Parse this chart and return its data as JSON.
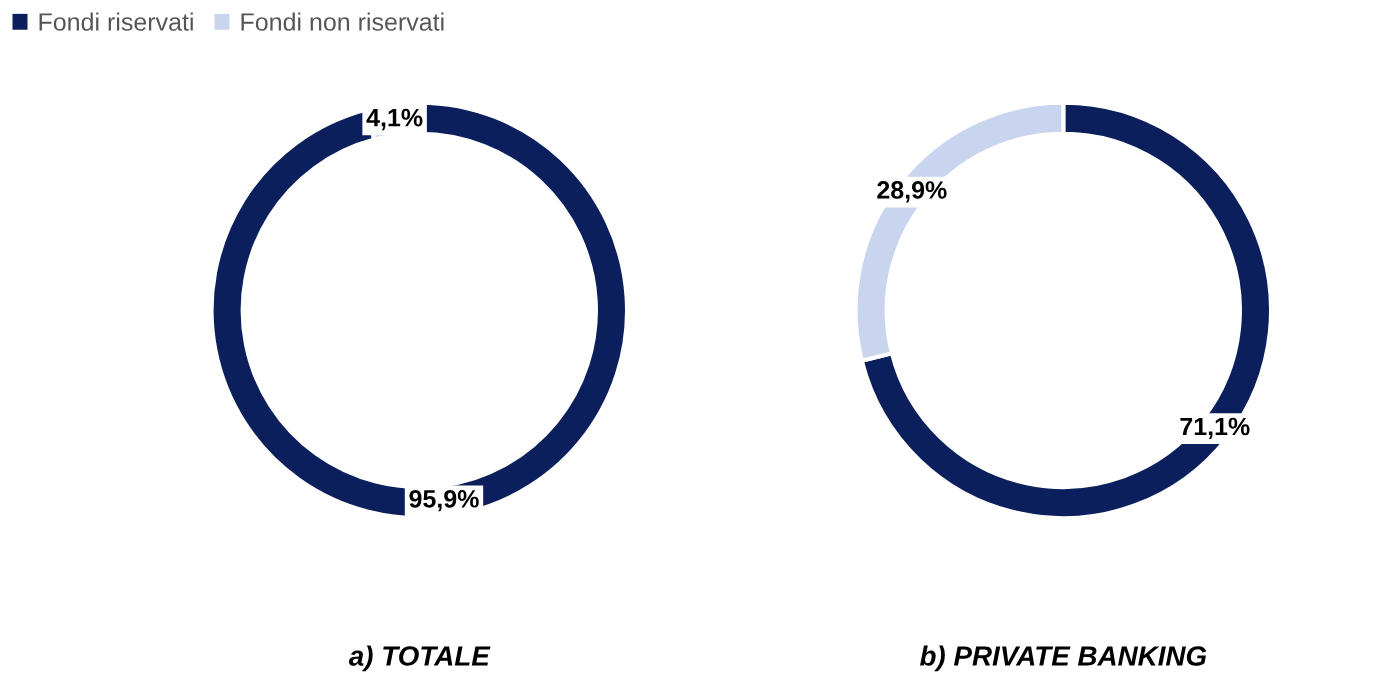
{
  "chart_data": [
    {
      "type": "donut",
      "title": "a) TOTALE",
      "categories": [
        "Fondi riservati",
        "Fondi non riservati"
      ],
      "values": [
        95.9,
        4.1
      ],
      "colors": [
        "#0b1f5c",
        "#c9d5ee"
      ],
      "value_labels": [
        "95,9%",
        "4,1%"
      ],
      "legend": "top left"
    },
    {
      "type": "donut",
      "title": "b) PRIVATE BANKING",
      "categories": [
        null,
        null
      ],
      "values": [
        71.1,
        28.9
      ],
      "colors": [
        "#0b1f5c",
        "#c9d5ee"
      ],
      "value_labels": [
        "71,1%",
        "28,9%"
      ]
    }
  ]
}
